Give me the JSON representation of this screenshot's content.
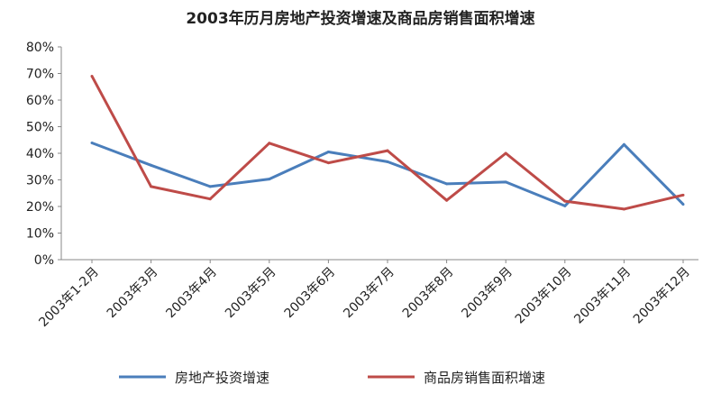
{
  "chart_data": {
    "type": "line",
    "title": "2003年历月房地产投资增速及商品房销售面积增速",
    "categories": [
      "2003年1-2月",
      "2003年3月",
      "2003年4月",
      "2003年5月",
      "2003年6月",
      "2003年7月",
      "2003年8月",
      "2003年9月",
      "2003年10月",
      "2003年11月",
      "2003年12月"
    ],
    "y_ticks": [
      "0%",
      "10%",
      "20%",
      "30%",
      "40%",
      "50%",
      "60%",
      "70%",
      "80%"
    ],
    "ylim": [
      0,
      80
    ],
    "grid": false,
    "legend_position": "bottom",
    "series": [
      {
        "name": "房地产投资增速",
        "color": "#4a7ebb",
        "values": [
          43.9,
          35.5,
          27.5,
          30.3,
          40.5,
          36.8,
          28.5,
          29.2,
          20.2,
          43.3,
          20.8
        ]
      },
      {
        "name": "商品房销售面积增速",
        "color": "#be4b48",
        "values": [
          69.0,
          27.5,
          22.8,
          43.8,
          36.4,
          41.0,
          22.3,
          40.0,
          22.0,
          19.0,
          24.3
        ]
      }
    ]
  }
}
